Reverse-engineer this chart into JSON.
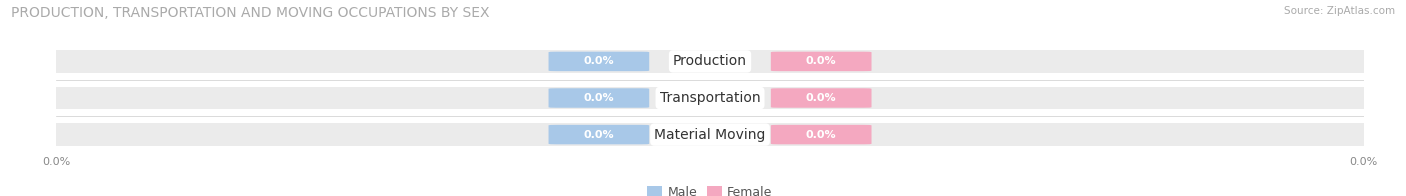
{
  "title": "PRODUCTION, TRANSPORTATION AND MOVING OCCUPATIONS BY SEX",
  "source_text": "Source: ZipAtlas.com",
  "categories": [
    "Production",
    "Transportation",
    "Material Moving"
  ],
  "male_values": [
    0.0,
    0.0,
    0.0
  ],
  "female_values": [
    0.0,
    0.0,
    0.0
  ],
  "male_color": "#a8c8e8",
  "female_color": "#f4a8c0",
  "bar_bg_color": "#ebebeb",
  "title_fontsize": 10,
  "axis_label_fontsize": 8,
  "bar_label_fontsize": 8,
  "category_fontsize": 10,
  "legend_fontsize": 9,
  "xlim": [
    -1.0,
    1.0
  ],
  "x_tick_label": "0.0%",
  "background_color": "#ffffff"
}
